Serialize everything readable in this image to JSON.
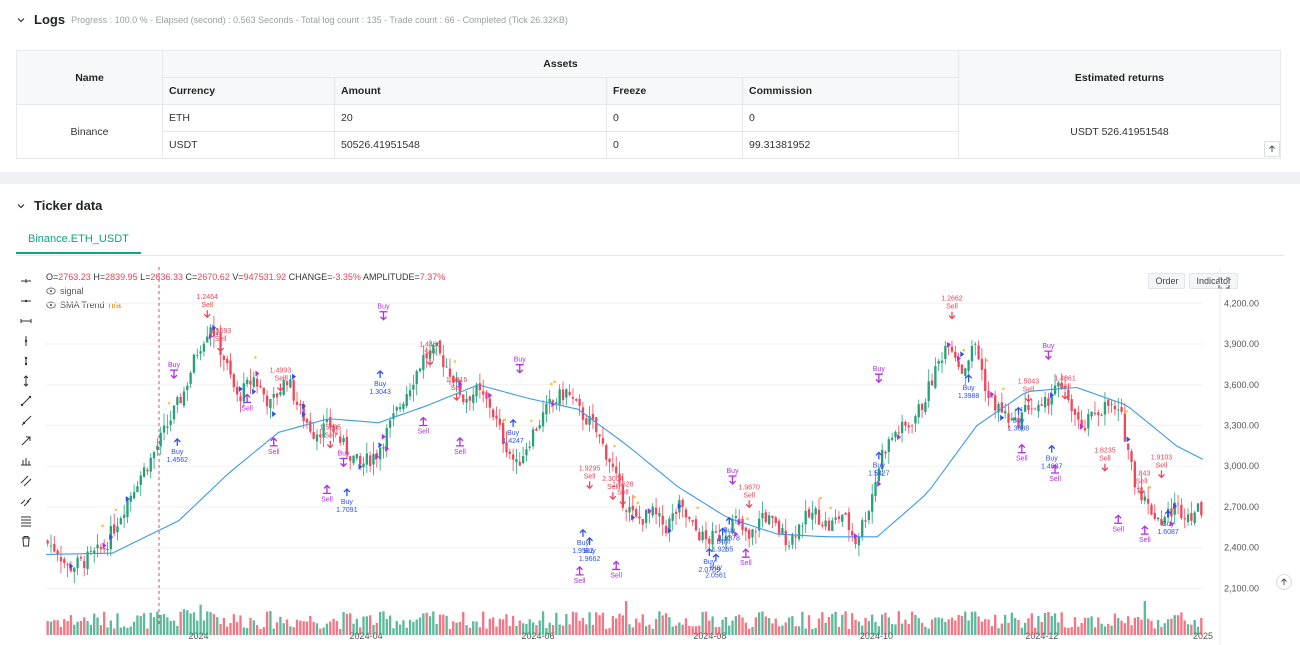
{
  "logs": {
    "title": "Logs",
    "progress": "Progress : 100.0 % - Elapsed (second) : 0.563 Seconds - Total log count : 135 - Trade count : 66 - Completed (Tick 26.32KB)"
  },
  "assets_table": {
    "name_header": "Name",
    "assets_header": "Assets",
    "returns_header": "Estimated returns",
    "columns": [
      "Currency",
      "Amount",
      "Freeze",
      "Commission"
    ],
    "exchange": "Binance",
    "rows": [
      {
        "currency": "ETH",
        "amount": "20",
        "freeze": "0",
        "commission": "0"
      },
      {
        "currency": "USDT",
        "amount": "50526.41951548",
        "freeze": "0",
        "commission": "99.31381952"
      }
    ],
    "estimated_returns": "USDT 526.41951548"
  },
  "ticker": {
    "title": "Ticker data",
    "tab": "Binance.ETH_USDT"
  },
  "chart_header": {
    "ohlc_o_label": "O=",
    "ohlc_o": "2763.23",
    "ohlc_h_label": "H=",
    "ohlc_h": "2839.95",
    "ohlc_l_label": "L=",
    "ohlc_l": "2636.33",
    "ohlc_c_label": "C=",
    "ohlc_c": "2670.62",
    "ohlc_v_label": "V=",
    "ohlc_v": "947531.92",
    "change_label": "CHANGE=",
    "change": "-3.35%",
    "amp_label": "AMPLITUDE=",
    "amp": "7.37%",
    "legend_signal": "signal",
    "legend_sma": "SMA Trend",
    "legend_sma_value": "n/a",
    "btn_order": "Order",
    "btn_indicator": "Indicator"
  },
  "colors": {
    "up": "#26a17b",
    "down": "#f0475a",
    "sma": "#3d9be9",
    "buy": "#3050e8",
    "sell": "#e8465a",
    "signal": "#b030e0",
    "accent": "#10a37f"
  },
  "chart_data": {
    "type": "candlestick",
    "x_ticks": [
      "2024",
      "2024-04",
      "2024-06",
      "2024-08",
      "2024-10",
      "2024-12",
      "2025"
    ],
    "y_ticks": [
      "4,200.00",
      "3,900.00",
      "3,600.00",
      "3,300.00",
      "3,000.00",
      "2,700.00",
      "2,400.00",
      "2,100.00"
    ],
    "y_tick_values": [
      4200,
      3900,
      3600,
      3300,
      3000,
      2700,
      2400,
      2100
    ],
    "ylim": [
      2000,
      4320
    ],
    "price_path": [
      [
        0,
        2450
      ],
      [
        4,
        2380
      ],
      [
        7,
        2250
      ],
      [
        12,
        2300
      ],
      [
        18,
        2400
      ],
      [
        24,
        2700
      ],
      [
        28,
        2900
      ],
      [
        32,
        3050
      ],
      [
        37,
        3300
      ],
      [
        42,
        3550
      ],
      [
        46,
        3850
      ],
      [
        50,
        4050
      ],
      [
        54,
        3800
      ],
      [
        58,
        3500
      ],
      [
        63,
        3650
      ],
      [
        68,
        3450
      ],
      [
        73,
        3650
      ],
      [
        77,
        3400
      ],
      [
        81,
        3250
      ],
      [
        86,
        3300
      ],
      [
        90,
        3150
      ],
      [
        95,
        3000
      ],
      [
        100,
        3100
      ],
      [
        105,
        3350
      ],
      [
        110,
        3600
      ],
      [
        114,
        3800
      ],
      [
        118,
        3850
      ],
      [
        122,
        3700
      ],
      [
        126,
        3500
      ],
      [
        130,
        3550
      ],
      [
        134,
        3450
      ],
      [
        138,
        3200
      ],
      [
        142,
        3000
      ],
      [
        147,
        3250
      ],
      [
        152,
        3450
      ],
      [
        157,
        3550
      ],
      [
        161,
        3400
      ],
      [
        165,
        3300
      ],
      [
        170,
        3050
      ],
      [
        174,
        2750
      ],
      [
        178,
        2600
      ],
      [
        183,
        2650
      ],
      [
        187,
        2550
      ],
      [
        191,
        2700
      ],
      [
        195,
        2550
      ],
      [
        199,
        2450
      ],
      [
        204,
        2500
      ],
      [
        208,
        2600
      ],
      [
        212,
        2450
      ],
      [
        216,
        2650
      ],
      [
        220,
        2550
      ],
      [
        224,
        2450
      ],
      [
        228,
        2600
      ],
      [
        232,
        2650
      ],
      [
        236,
        2550
      ],
      [
        240,
        2650
      ],
      [
        244,
        2450
      ],
      [
        248,
        2700
      ],
      [
        252,
        3100
      ],
      [
        256,
        3250
      ],
      [
        260,
        3300
      ],
      [
        264,
        3450
      ],
      [
        268,
        3700
      ],
      [
        272,
        3950
      ],
      [
        276,
        3700
      ],
      [
        280,
        3900
      ],
      [
        284,
        3500
      ],
      [
        288,
        3400
      ],
      [
        292,
        3300
      ],
      [
        296,
        3450
      ],
      [
        300,
        3400
      ],
      [
        304,
        3600
      ],
      [
        308,
        3500
      ],
      [
        312,
        3250
      ],
      [
        316,
        3400
      ],
      [
        320,
        3450
      ],
      [
        324,
        3350
      ],
      [
        328,
        2900
      ],
      [
        332,
        2700
      ],
      [
        336,
        2600
      ],
      [
        340,
        2700
      ],
      [
        344,
        2650
      ],
      [
        348,
        2680
      ]
    ],
    "sma_path": [
      [
        0,
        2350
      ],
      [
        20,
        2360
      ],
      [
        40,
        2600
      ],
      [
        55,
        2950
      ],
      [
        70,
        3250
      ],
      [
        85,
        3350
      ],
      [
        100,
        3320
      ],
      [
        115,
        3450
      ],
      [
        130,
        3600
      ],
      [
        145,
        3500
      ],
      [
        160,
        3420
      ],
      [
        175,
        3150
      ],
      [
        190,
        2850
      ],
      [
        205,
        2620
      ],
      [
        220,
        2500
      ],
      [
        235,
        2480
      ],
      [
        250,
        2480
      ],
      [
        265,
        2800
      ],
      [
        280,
        3300
      ],
      [
        295,
        3550
      ],
      [
        310,
        3580
      ],
      [
        325,
        3450
      ],
      [
        340,
        3150
      ],
      [
        348,
        3050
      ]
    ],
    "n_points": 348,
    "annotations": [
      {
        "label": "Sell",
        "value": "1.2464",
        "type": "sell",
        "i": 48,
        "p": 4230
      },
      {
        "label": "Sell",
        "value": "1.5693",
        "type": "sell",
        "i": 52,
        "p": 3980
      },
      {
        "label": "Buy",
        "type": "buy-label",
        "i": 38,
        "p": 3730
      },
      {
        "label": "Buy",
        "value": "1.4562",
        "type": "buy",
        "i": 39,
        "p": 3150
      },
      {
        "label": "Sell",
        "type": "sell-below",
        "i": 60,
        "p": 3470
      },
      {
        "label": "Sell",
        "value": "1.4993",
        "type": "sell",
        "i": 70,
        "p": 3690
      },
      {
        "label": "Sell",
        "type": "sell-below",
        "i": 68,
        "p": 3150
      },
      {
        "label": "Sell",
        "value": "1.5235",
        "type": "sell",
        "i": 85,
        "p": 3270
      },
      {
        "label": "Buy",
        "type": "buy-label",
        "i": 89,
        "p": 3080
      },
      {
        "label": "Buy",
        "value": "1.7091",
        "type": "buy",
        "i": 90,
        "p": 2780
      },
      {
        "label": "Sell",
        "type": "sell-below",
        "i": 84,
        "p": 2800
      },
      {
        "label": "Buy",
        "type": "buy-label",
        "i": 101,
        "p": 4160
      },
      {
        "label": "Buy",
        "value": "1.3043",
        "type": "buy",
        "i": 100,
        "p": 3650
      },
      {
        "label": "Sell",
        "value": "1.4466",
        "type": "sell",
        "i": 115,
        "p": 3880
      },
      {
        "label": "Sell",
        "value": "1.4816",
        "type": "sell",
        "i": 123,
        "p": 3620
      },
      {
        "label": "Sell",
        "type": "sell-below",
        "i": 113,
        "p": 3300
      },
      {
        "label": "Sell",
        "type": "sell-below",
        "i": 124,
        "p": 3150
      },
      {
        "label": "Buy",
        "type": "buy-label",
        "i": 142,
        "p": 3770
      },
      {
        "label": "Buy",
        "value": "1.4247",
        "type": "buy",
        "i": 140,
        "p": 3290
      },
      {
        "label": "Sell",
        "value": "1.9295",
        "type": "sell",
        "i": 163,
        "p": 2970
      },
      {
        "label": "Sell",
        "value": "2.3004",
        "type": "sell",
        "i": 170,
        "p": 2890
      },
      {
        "label": "Sell",
        "value": "1.9628",
        "type": "sell",
        "i": 173,
        "p": 2850
      },
      {
        "label": "Buy",
        "value": "1.9582",
        "type": "buy",
        "i": 161,
        "p": 2480
      },
      {
        "label": "Buy",
        "value": "1.9662",
        "type": "buy",
        "i": 163,
        "p": 2420
      },
      {
        "label": "Sell",
        "type": "sell-below",
        "i": 160,
        "p": 2200
      },
      {
        "label": "Sell",
        "type": "sell-below",
        "i": 171,
        "p": 2240
      },
      {
        "label": "Buy",
        "type": "buy-label",
        "i": 206,
        "p": 2950
      },
      {
        "label": "Buy",
        "value": "2.0709",
        "type": "buy",
        "i": 199,
        "p": 2340
      },
      {
        "label": "Buy",
        "value": "1.9265",
        "type": "buy",
        "i": 203,
        "p": 2490
      },
      {
        "label": "Buy",
        "value": "2.0561",
        "type": "buy",
        "i": 201,
        "p": 2300
      },
      {
        "label": "Buy",
        "value": "1.9878",
        "type": "buy",
        "i": 205,
        "p": 2570
      },
      {
        "label": "Sell",
        "value": "1.9870",
        "type": "sell",
        "i": 211,
        "p": 2830
      },
      {
        "label": "Sell",
        "type": "sell-below",
        "i": 210,
        "p": 2330
      },
      {
        "label": "Buy",
        "type": "buy-label",
        "i": 250,
        "p": 3700
      },
      {
        "label": "Buy",
        "value": "1.5427",
        "type": "buy",
        "i": 250,
        "p": 3050
      },
      {
        "label": "Sell",
        "value": "1.2662",
        "type": "sell",
        "i": 272,
        "p": 4220
      },
      {
        "label": "Buy",
        "value": "1.3988",
        "type": "buy",
        "i": 277,
        "p": 3620
      },
      {
        "label": "Sell",
        "value": "1.5043",
        "type": "sell",
        "i": 295,
        "p": 3610
      },
      {
        "label": "Buy",
        "value": "1.3888",
        "type": "buy",
        "i": 292,
        "p": 3380
      },
      {
        "label": "Buy",
        "type": "buy-label",
        "i": 301,
        "p": 3870
      },
      {
        "label": "Sell",
        "value": "1.4861",
        "type": "sell",
        "i": 306,
        "p": 3630
      },
      {
        "label": "Buy",
        "value": "1.4627",
        "type": "buy",
        "i": 302,
        "p": 3100
      },
      {
        "label": "Sell",
        "type": "sell-below",
        "i": 293,
        "p": 3100
      },
      {
        "label": "Sell",
        "type": "sell-below",
        "i": 303,
        "p": 2950
      },
      {
        "label": "Sell",
        "value": "1.8235",
        "type": "sell",
        "i": 318,
        "p": 3100
      },
      {
        "label": "Sell",
        "value": "1.9103",
        "type": "sell",
        "i": 335,
        "p": 3050
      },
      {
        "label": "Sell",
        "value": "1.843",
        "type": "sell",
        "i": 329,
        "p": 2930
      },
      {
        "label": "Buy",
        "value": "1.6087",
        "type": "buy",
        "i": 337,
        "p": 2620
      },
      {
        "label": "Sell",
        "type": "sell-below",
        "i": 322,
        "p": 2580
      },
      {
        "label": "Sell",
        "type": "sell-below",
        "i": 330,
        "p": 2500
      }
    ],
    "vline_index": 34
  }
}
